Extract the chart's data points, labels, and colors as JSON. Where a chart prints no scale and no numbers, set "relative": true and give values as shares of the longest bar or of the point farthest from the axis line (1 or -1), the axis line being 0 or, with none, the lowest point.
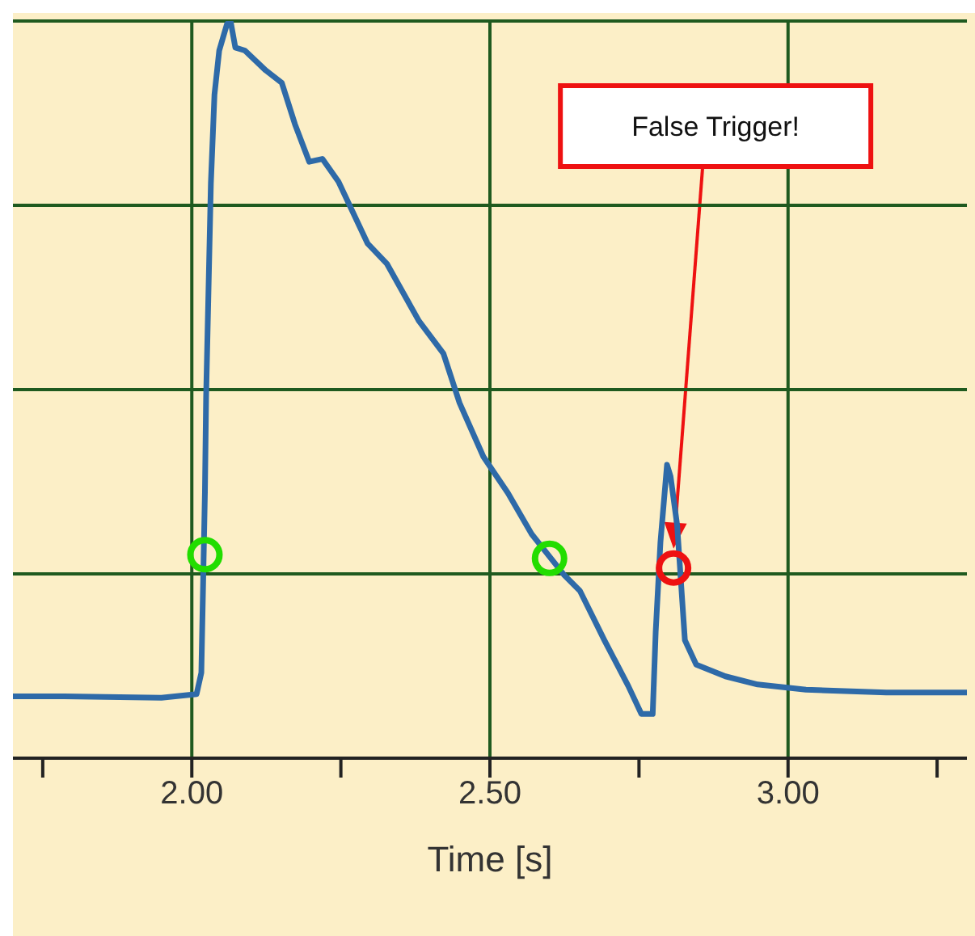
{
  "chart_data": {
    "type": "line",
    "xlabel": "Time [s]",
    "relative": true,
    "grid": true,
    "tick_labels": "x",
    "line_style": "solid",
    "xlim": [
      1.7,
      3.3
    ],
    "xticks": [
      {
        "value": 1.75,
        "label": null
      },
      {
        "value": 2,
        "label": "2.00"
      },
      {
        "value": 2.25,
        "label": null
      },
      {
        "value": 2.5,
        "label": "2.50"
      },
      {
        "value": 2.75,
        "label": null
      },
      {
        "value": 3,
        "label": "3.00"
      },
      {
        "value": 3.25,
        "label": null
      }
    ],
    "series": [
      {
        "color": "#2e6aa8",
        "marker": "none",
        "x": [
          1.7,
          1.786,
          1.949,
          2.008,
          2.016,
          2.022,
          2.024,
          2.032,
          2.038,
          2.046,
          2.059,
          2.065,
          2.073,
          2.089,
          2.124,
          2.151,
          2.173,
          2.197,
          2.219,
          2.246,
          2.295,
          2.327,
          2.381,
          2.422,
          2.449,
          2.489,
          2.53,
          2.57,
          2.624,
          2.651,
          2.692,
          2.732,
          2.754,
          2.773,
          2.778,
          2.786,
          2.797,
          2.803,
          2.814,
          2.827,
          2.846,
          2.895,
          2.949,
          3.03,
          3.165,
          3.3
        ],
        "values": [
          0.084,
          0.084,
          0.082,
          0.087,
          0.116,
          0.36,
          0.49,
          0.78,
          0.9,
          0.96,
          0.996,
          1,
          0.964,
          0.96,
          0.933,
          0.916,
          0.86,
          0.809,
          0.813,
          0.782,
          0.698,
          0.671,
          0.593,
          0.549,
          0.482,
          0.409,
          0.36,
          0.304,
          0.249,
          0.227,
          0.16,
          0.098,
          0.06,
          0.06,
          0.171,
          0.293,
          0.398,
          0.382,
          0.316,
          0.16,
          0.127,
          0.111,
          0.1,
          0.093,
          0.089,
          0.089
        ]
      },
      {
        "type": "scatter",
        "color": "#22dd00",
        "marker": "circle",
        "x": [
          2.022,
          2.6
        ],
        "values": [
          0.276,
          0.271
        ]
      },
      {
        "type": "scatter",
        "color": "#ee1111",
        "marker": "circle",
        "x": [
          2.808
        ],
        "values": [
          0.258
        ]
      }
    ],
    "annotations": [
      "False Trigger!"
    ]
  }
}
